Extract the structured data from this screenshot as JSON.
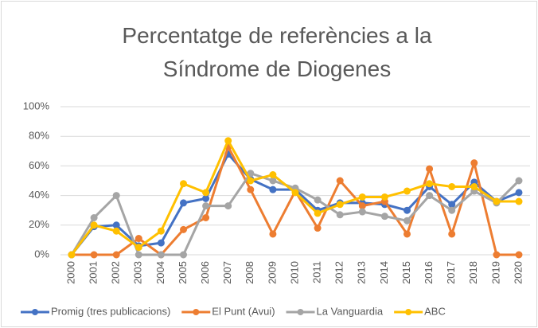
{
  "chart_data": {
    "type": "line",
    "title": "Percentatge de referències a la Síndrome de Diogenes",
    "categories": [
      "2000",
      "2001",
      "2002",
      "2003",
      "2004",
      "2005",
      "2006",
      "2007",
      "2008",
      "2009",
      "2010",
      "2011",
      "2012",
      "2013",
      "2014",
      "2015",
      "2016",
      "2017",
      "2018",
      "2019",
      "2020"
    ],
    "series": [
      {
        "name": "Promig (tres publicacions)",
        "color": "#4472c4",
        "values": [
          0,
          19,
          20,
          6,
          8,
          35,
          38,
          68,
          51,
          44,
          44,
          30,
          35,
          35,
          34,
          30,
          46,
          34,
          49,
          36,
          42
        ]
      },
      {
        "name": "El Punt (Avui)",
        "color": "#ed7d31",
        "values": [
          0,
          0,
          0,
          11,
          0,
          17,
          25,
          73,
          44,
          14,
          43,
          18,
          50,
          33,
          36,
          14,
          58,
          14,
          62,
          0,
          0
        ]
      },
      {
        "name": "La Vanguardia",
        "color": "#a5a5a5",
        "values": [
          0,
          25,
          40,
          0,
          0,
          0,
          33,
          33,
          55,
          50,
          45,
          37,
          27,
          29,
          26,
          23,
          40,
          30,
          43,
          35,
          50
        ]
      },
      {
        "name": "ABC",
        "color": "#ffc000",
        "values": [
          0,
          20,
          16,
          5,
          16,
          48,
          42,
          77,
          50,
          54,
          42,
          28,
          34,
          39,
          39,
          43,
          48,
          46,
          46,
          36,
          36
        ]
      }
    ],
    "ylim": [
      0,
      100
    ],
    "yticks": [
      {
        "value": 0,
        "label": "0%"
      },
      {
        "value": 20,
        "label": "20%"
      },
      {
        "value": 40,
        "label": "40%"
      },
      {
        "value": 60,
        "label": "60%"
      },
      {
        "value": 80,
        "label": "80%"
      },
      {
        "value": 100,
        "label": "100%"
      }
    ],
    "grid": true,
    "legend": "bottom"
  }
}
